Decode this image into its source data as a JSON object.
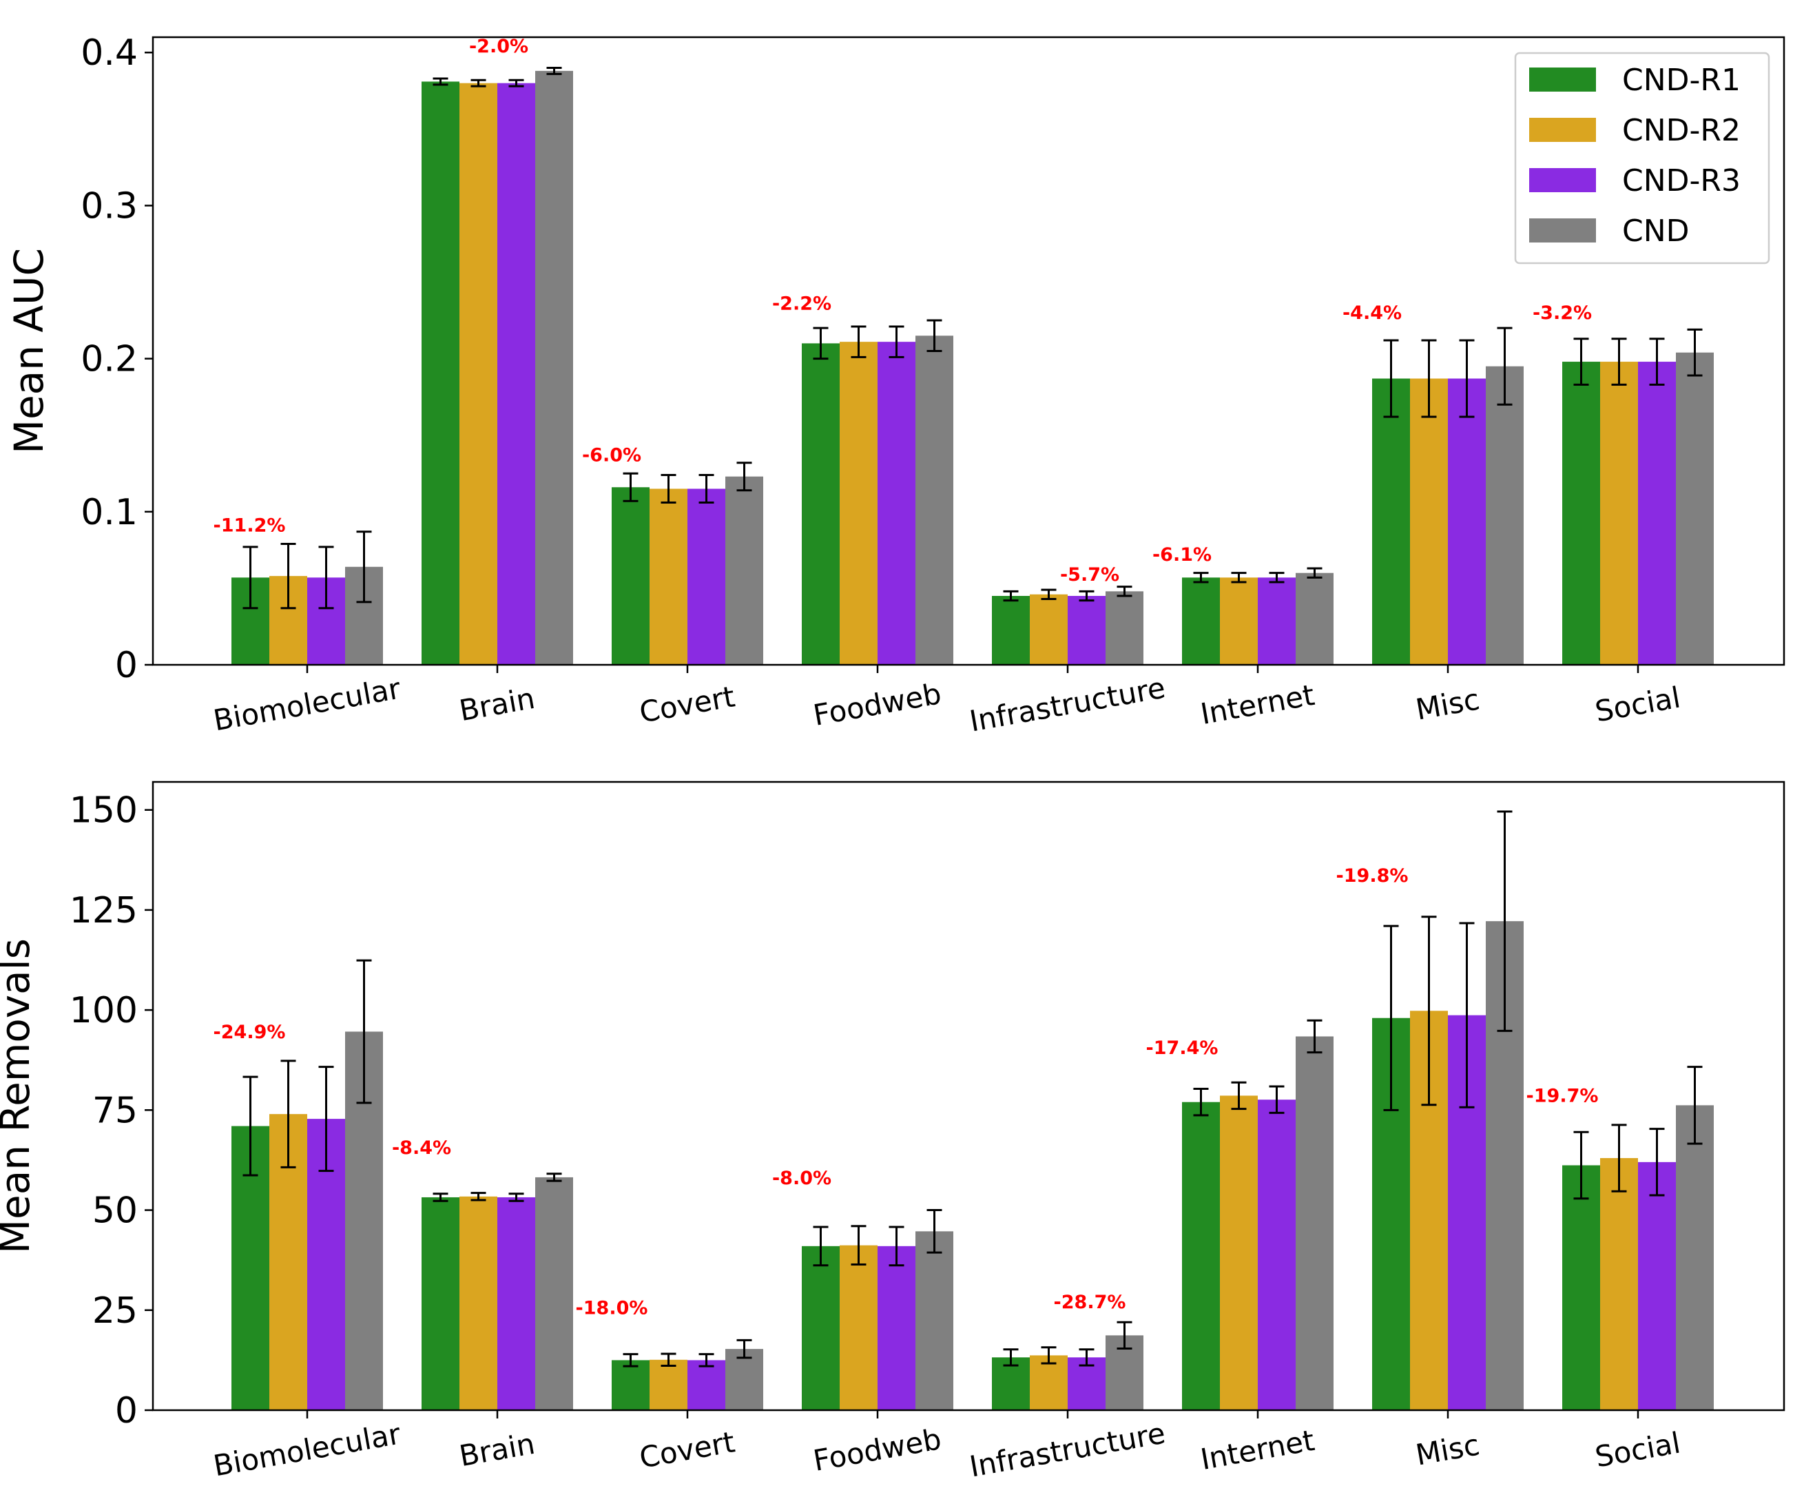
{
  "chart_data": [
    {
      "type": "bar",
      "panel": "top",
      "ylabel": "Mean AUC",
      "ylim": [
        0,
        0.41
      ],
      "yticks": [
        0,
        0.1,
        0.2,
        0.3,
        0.4
      ],
      "ytick_labels": [
        "0",
        "0.1",
        "0.2",
        "0.3",
        "0.4"
      ],
      "categories": [
        "Biomolecular",
        "Brain",
        "Covert",
        "Foodweb",
        "Infrastructure",
        "Internet",
        "Misc",
        "Social"
      ],
      "series": [
        {
          "name": "CND-R1",
          "values": [
            0.057,
            0.381,
            0.116,
            0.21,
            0.045,
            0.057,
            0.187,
            0.198
          ],
          "errors": [
            0.02,
            0.002,
            0.009,
            0.01,
            0.003,
            0.003,
            0.025,
            0.015
          ]
        },
        {
          "name": "CND-R2",
          "values": [
            0.058,
            0.38,
            0.115,
            0.211,
            0.046,
            0.057,
            0.187,
            0.198
          ],
          "errors": [
            0.021,
            0.002,
            0.009,
            0.01,
            0.003,
            0.003,
            0.025,
            0.015
          ]
        },
        {
          "name": "CND-R3",
          "values": [
            0.057,
            0.38,
            0.115,
            0.211,
            0.045,
            0.057,
            0.187,
            0.198
          ],
          "errors": [
            0.02,
            0.002,
            0.009,
            0.01,
            0.003,
            0.003,
            0.025,
            0.015
          ]
        },
        {
          "name": "CND",
          "values": [
            0.064,
            0.388,
            0.123,
            0.215,
            0.048,
            0.06,
            0.195,
            0.204
          ],
          "errors": [
            0.023,
            0.002,
            0.009,
            0.01,
            0.003,
            0.003,
            0.025,
            0.015
          ]
        }
      ],
      "annotations": [
        "-11.2%",
        "-2.0%",
        "-6.0%",
        "-2.2%",
        "-5.7%",
        "-6.1%",
        "-4.4%",
        "-3.2%"
      ],
      "annotation_heights": [
        0.087,
        0.4,
        0.133,
        0.232,
        0.055,
        0.068,
        0.226,
        0.226
      ]
    },
    {
      "type": "bar",
      "panel": "bottom",
      "ylabel": "Mean Removals",
      "ylim": [
        0,
        157
      ],
      "yticks": [
        0,
        25,
        50,
        75,
        100,
        125,
        150
      ],
      "ytick_labels": [
        "0",
        "25",
        "50",
        "75",
        "100",
        "125",
        "150"
      ],
      "categories": [
        "Biomolecular",
        "Brain",
        "Covert",
        "Foodweb",
        "Infrastructure",
        "Internet",
        "Misc",
        "Social"
      ],
      "series": [
        {
          "name": "CND-R1",
          "values": [
            71.0,
            53.2,
            12.5,
            41.0,
            13.2,
            77.0,
            98.0,
            61.2
          ],
          "errors": [
            12.3,
            0.9,
            1.5,
            4.8,
            2.0,
            3.3,
            23.0,
            8.3
          ]
        },
        {
          "name": "CND-R2",
          "values": [
            74.0,
            53.4,
            12.6,
            41.2,
            13.7,
            78.6,
            99.8,
            63.0
          ],
          "errors": [
            13.3,
            0.9,
            1.5,
            4.8,
            2.0,
            3.3,
            23.5,
            8.3
          ]
        },
        {
          "name": "CND-R3",
          "values": [
            72.8,
            53.2,
            12.5,
            41.0,
            13.2,
            77.6,
            98.7,
            62.0
          ],
          "errors": [
            13.0,
            0.9,
            1.5,
            4.8,
            2.0,
            3.3,
            23.0,
            8.3
          ]
        },
        {
          "name": "CND",
          "values": [
            94.6,
            58.2,
            15.3,
            44.7,
            18.7,
            93.4,
            122.2,
            76.2
          ],
          "errors": [
            17.8,
            0.9,
            2.2,
            5.3,
            3.3,
            4.0,
            27.4,
            9.6
          ]
        }
      ],
      "annotations": [
        "-24.9%",
        "-8.4%",
        "-18.0%",
        "-8.0%",
        "-28.7%",
        "-17.4%",
        "-19.8%",
        "-19.7%"
      ],
      "annotation_heights": [
        93.0,
        64.0,
        24.0,
        56.5,
        25.5,
        89.0,
        132.0,
        77.0
      ]
    }
  ],
  "legend": [
    "CND-R1",
    "CND-R2",
    "CND-R3",
    "CND"
  ],
  "colors": {
    "CND-R1": "#228b22",
    "CND-R2": "#daa520",
    "CND-R3": "#8a2be2",
    "CND": "#808080",
    "annotation": "#ff0000"
  }
}
